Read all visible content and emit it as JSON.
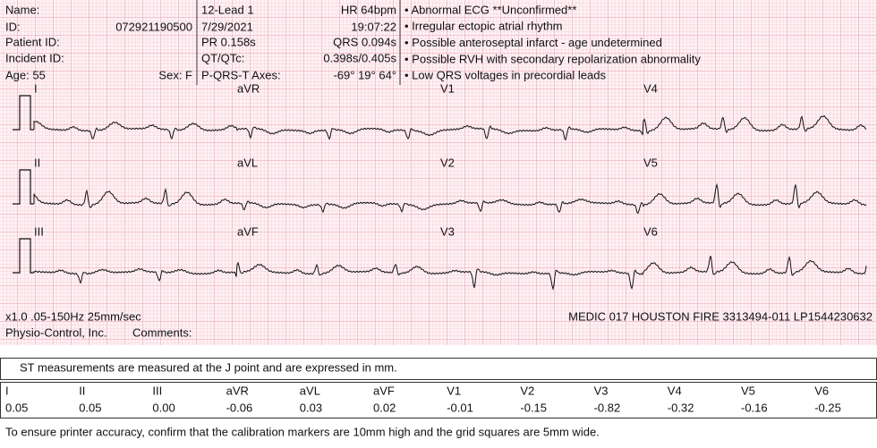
{
  "header": {
    "name_label": "Name:",
    "id_label": "ID:",
    "id": "072921190500",
    "patient_id_label": "Patient ID:",
    "incident_id_label": "Incident ID:",
    "age": "Age: 55",
    "sex": "Sex: F",
    "lead_mode": "12-Lead 1",
    "date": "7/29/2021",
    "pr": "PR 0.158s",
    "qt_label": "QT/QTc:",
    "axes_label": "P-QRS-T Axes:",
    "hr": "HR 64bpm",
    "time": "19:07:22",
    "qrs": "QRS 0.094s",
    "qt": "0.398s/0.405s",
    "axes": "-69° 19° 64°"
  },
  "interpretation": [
    "• Abnormal ECG **Unconfirmed**",
    "• Irregular ectopic atrial rhythm",
    "• Possible anteroseptal infarct - age undetermined",
    "• Possible RVH with secondary repolarization abnormality",
    "• Low QRS voltages in precordial leads"
  ],
  "leads": [
    [
      "I",
      "aVR",
      "V1",
      "V4"
    ],
    [
      "II",
      "aVL",
      "V2",
      "V5"
    ],
    [
      "III",
      "aVF",
      "V3",
      "V6"
    ]
  ],
  "footer": {
    "settings": "x1.0 .05-150Hz 25mm/sec",
    "device": "MEDIC 017 HOUSTON FIRE 3313494-011 LP1544230632",
    "maker": "Physio-Control, Inc.",
    "comments": "Comments:"
  },
  "st": {
    "note": "ST measurements are measured at the J point and are expressed in mm.",
    "leads": [
      "I",
      "II",
      "III",
      "aVR",
      "aVL",
      "aVF",
      "V1",
      "V2",
      "V3",
      "V4",
      "V5",
      "V6"
    ],
    "values": [
      "0.05",
      "0.05",
      "0.00",
      "-0.06",
      "0.03",
      "0.02",
      "-0.01",
      "-0.15",
      "-0.82",
      "-0.32",
      "-0.16",
      "-0.25"
    ]
  },
  "note": "To ensure printer accuracy, confirm that the calibration markers are 10mm high and the grid squares are 5mm wide."
}
